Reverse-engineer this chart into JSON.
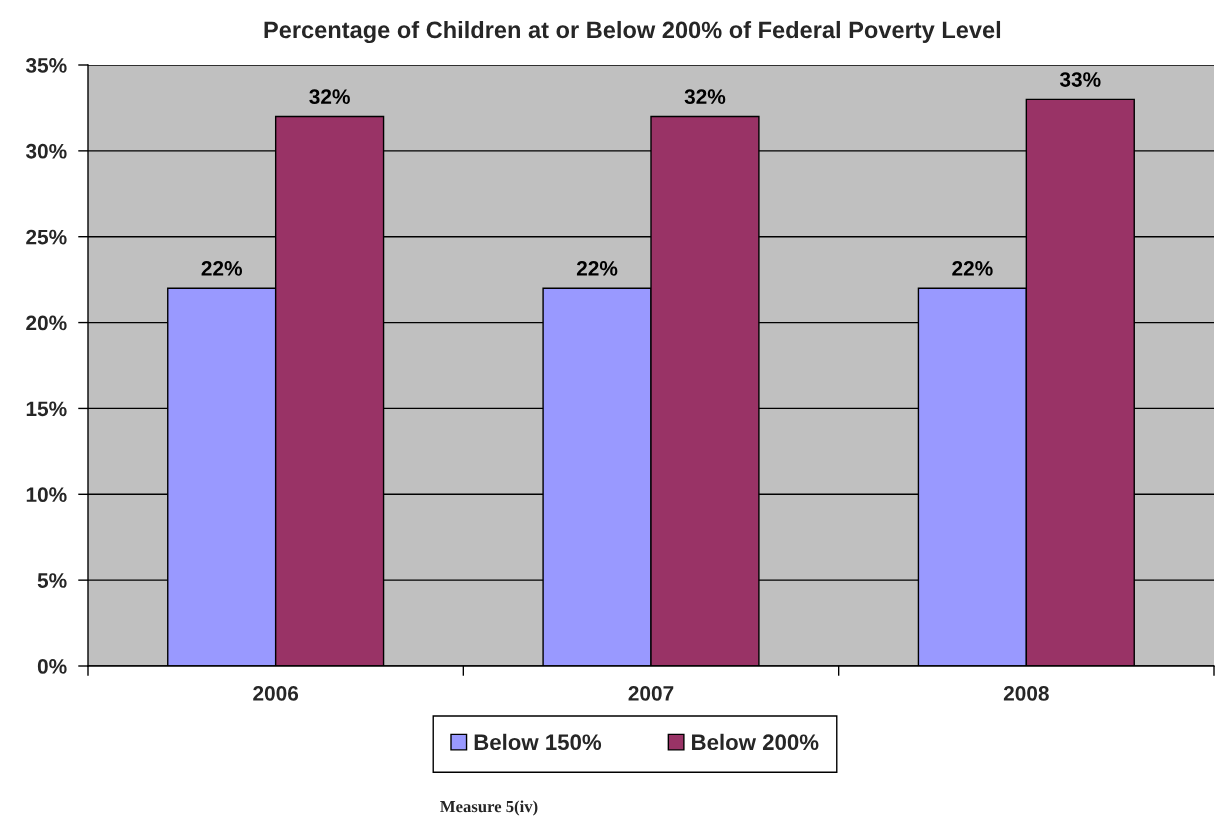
{
  "chart_data": {
    "type": "bar",
    "title": "Percentage of Children at or Below 200% of Federal Poverty Level",
    "categories": [
      "2006",
      "2007",
      "2008"
    ],
    "series": [
      {
        "name": "Below 150%",
        "color": "#9999ff",
        "values": [
          22,
          22,
          22
        ],
        "value_labels": [
          "22%",
          "22%",
          "22%"
        ]
      },
      {
        "name": "Below 200%",
        "color": "#993366",
        "values": [
          32,
          32,
          33
        ],
        "value_labels": [
          "32%",
          "32%",
          "33%"
        ]
      }
    ],
    "ylim": [
      0,
      35
    ],
    "yticks": [
      {
        "value": 0,
        "label": "0%"
      },
      {
        "value": 5,
        "label": "5%"
      },
      {
        "value": 10,
        "label": "10%"
      },
      {
        "value": 15,
        "label": "15%"
      },
      {
        "value": 20,
        "label": "20%"
      },
      {
        "value": 25,
        "label": "25%"
      },
      {
        "value": 30,
        "label": "30%"
      },
      {
        "value": 35,
        "label": "35%"
      }
    ],
    "grid": "y",
    "legend": "bottom",
    "annotations": [
      "Measure 5(iv)"
    ]
  }
}
